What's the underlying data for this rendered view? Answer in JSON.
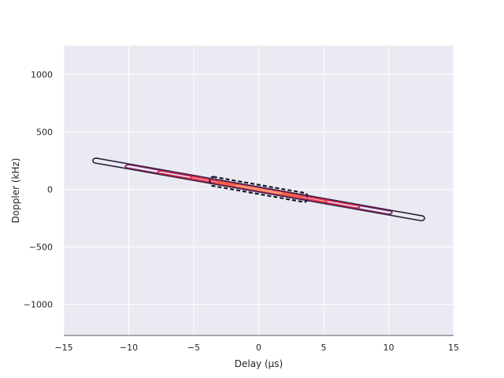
{
  "chart_data": {
    "type": "contour",
    "title": "",
    "xlabel": "Delay (μs)",
    "ylabel": "Doppler (kHz)",
    "xlim": [
      -15,
      15
    ],
    "ylim": [
      -1270,
      1250
    ],
    "xticks": [
      -15,
      -10,
      -5,
      0,
      5,
      10,
      15
    ],
    "yticks": [
      -1000,
      -500,
      0,
      500,
      1000
    ],
    "xtick_labels": [
      "−15",
      "−10",
      "−5",
      "0",
      "5",
      "10",
      "15"
    ],
    "ytick_labels": [
      "−1000",
      "−500",
      "0",
      "500",
      "1000"
    ],
    "grid": true,
    "background_color": "#eaeaf2",
    "grid_color": "#ffffff",
    "ridge": {
      "slope_khz_per_us": -20,
      "description_points": [
        [
          -12,
          240
        ],
        [
          12,
          -240
        ]
      ]
    },
    "levels": [
      {
        "level": 1,
        "color": "#2e1e3b",
        "x_range": [
          -12.5,
          12.5
        ],
        "half_width_khz": 22,
        "dashed": false
      },
      {
        "level": 2,
        "color": "#7a1f5d",
        "x_range": [
          -10.0,
          10.0
        ],
        "half_width_khz": 15,
        "dashed": false
      },
      {
        "level": 3,
        "color": "#c4244e",
        "x_range": [
          -7.5,
          7.5
        ],
        "half_width_khz": 11,
        "dashed": false
      },
      {
        "level": 4,
        "color": "#e8384f",
        "x_range": [
          -5.0,
          5.0
        ],
        "half_width_khz": 8,
        "dashed": false
      },
      {
        "level": 5,
        "color": "#f06043",
        "x_range": [
          -3.0,
          3.0
        ],
        "half_width_khz": 6,
        "dashed": false
      },
      {
        "level": 6,
        "color": "#f69c73",
        "x_range": [
          -1.5,
          1.5
        ],
        "half_width_khz": 4,
        "dashed": false
      },
      {
        "level": 7,
        "color": "#1a1a2e",
        "x_range": [
          -3.5,
          3.5
        ],
        "half_width_khz": 40,
        "dashed": true
      }
    ]
  }
}
